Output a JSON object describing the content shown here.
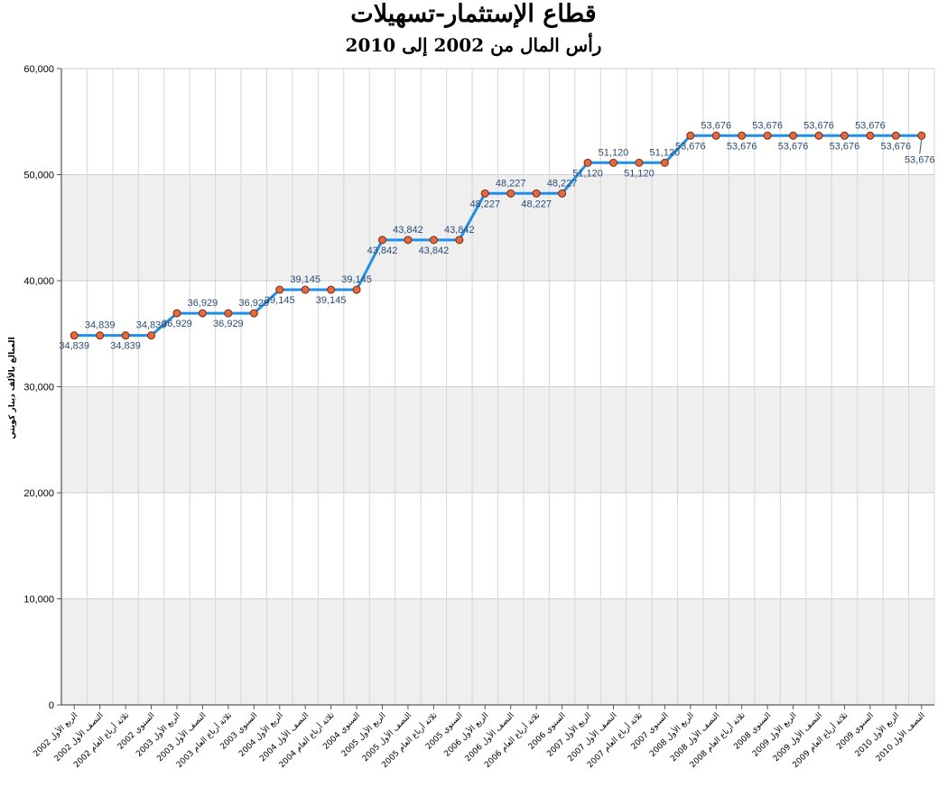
{
  "chart_data": {
    "type": "line",
    "title": "قطاع الإستثمار-تسهيلات",
    "subtitle": "رأس المال من 2002 إلى 2010",
    "ylabel": "المبالغ بالألف دينار كويتي",
    "xlabel": "",
    "ylim": [
      0,
      60000
    ],
    "y_ticks": [
      "0",
      "10,000",
      "20,000",
      "30,000",
      "40,000",
      "50,000",
      "60,000"
    ],
    "grid": true,
    "line_color": "#1e90e8",
    "marker_color": "#e8683a",
    "band_color": "#efefef",
    "categories": [
      "الربع الأول 2002",
      "النصف الأول 2002",
      "ثلاثة أرباع العام 2002",
      "السنوي 2002",
      "الربع الأول 2003",
      "النصف الأول 2003",
      "ثلاثة أرباع العام 2003",
      "السنوي 2003",
      "الربع الأول 2004",
      "النصف الأول 2004",
      "ثلاثة أرباع العام 2004",
      "السنوي 2004",
      "الربع الأول 2005",
      "النصف الأول 2005",
      "ثلاثة أرباع العام 2005",
      "السنوي 2005",
      "الربع الأول 2006",
      "النصف الأول 2006",
      "ثلاثة أرباع العام 2006",
      "السنوي 2006",
      "الربع الأول 2007",
      "النصف الأول 2007",
      "ثلاثة أرباع العام 2007",
      "السنوي 2007",
      "الربع الأول 2008",
      "النصف الأول 2008",
      "ثلاثة أرباع العام 2008",
      "السنوي 2008",
      "الربع الأول 2009",
      "النصف الأول 2009",
      "ثلاثة أرباع العام 2009",
      "السنوي 2009",
      "الربع الأول 2010",
      "النصف الأول 2010"
    ],
    "series": [
      {
        "values": [
          34839,
          34839,
          34839,
          34839,
          36929,
          36929,
          36929,
          36929,
          39145,
          39145,
          39145,
          39145,
          43842,
          43842,
          43842,
          43842,
          48227,
          48227,
          48227,
          48227,
          51120,
          51120,
          51120,
          51120,
          53676,
          53676,
          53676,
          53676,
          53676,
          53676,
          53676,
          53676,
          53676,
          53676
        ],
        "labels": [
          "34,839",
          "34,839",
          "34,839",
          "34,839",
          "36,929",
          "36,929",
          "36,929",
          "36,929",
          "39,145",
          "39,145",
          "39,145",
          "39,145",
          "43,842",
          "43,842",
          "43,842",
          "43,842",
          "48,227",
          "48,227",
          "48,227",
          "48,227",
          "51,120",
          "51,120",
          "51,120",
          "51,120",
          "53,676",
          "53,676",
          "53,676",
          "53,676",
          "53,676",
          "53,676",
          "53,676",
          "53,676",
          "53,676",
          "53,676"
        ]
      }
    ]
  }
}
